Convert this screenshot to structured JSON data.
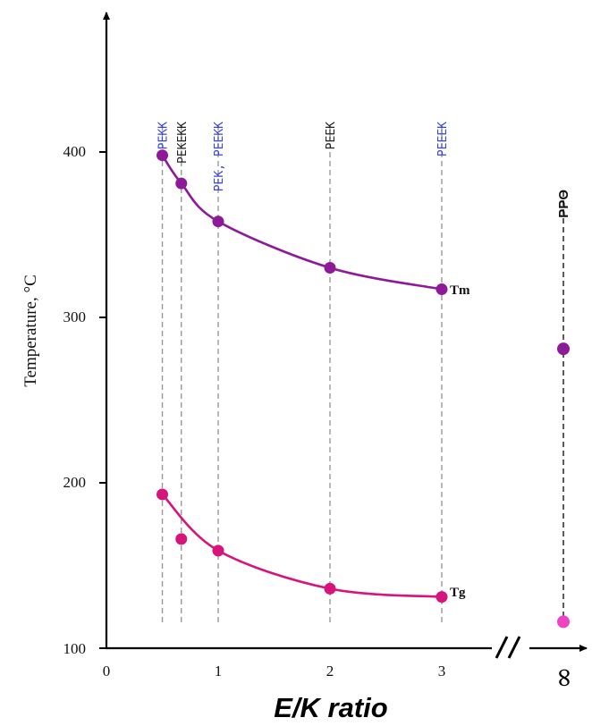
{
  "chart_data": {
    "type": "line",
    "xlabel": "E/K ratio",
    "ylabel": "Temperature, °C",
    "xlim": [
      0,
      3.2
    ],
    "ylim": [
      100,
      480
    ],
    "x_ticks": [
      "0",
      "1",
      "2",
      "3"
    ],
    "y_ticks": [
      "100",
      "200",
      "300",
      "400"
    ],
    "infinity_tick": "∞",
    "series": [
      {
        "name": "Tm",
        "color": "#8e1a99",
        "points": [
          {
            "x": 0.5,
            "y": 398
          },
          {
            "x": 0.67,
            "y": 381
          },
          {
            "x": 1.0,
            "y": 358
          },
          {
            "x": 2.0,
            "y": 330
          },
          {
            "x": 3.0,
            "y": 317
          }
        ],
        "infinity_value": 281
      },
      {
        "name": "Tg",
        "color": "#d6147b",
        "points": [
          {
            "x": 0.5,
            "y": 193
          },
          {
            "x": 0.67,
            "y": 166
          },
          {
            "x": 1.0,
            "y": 159
          },
          {
            "x": 2.0,
            "y": 136
          },
          {
            "x": 3.0,
            "y": 131
          }
        ],
        "infinity_value": 116,
        "infinity_color": "#ee44c4"
      }
    ],
    "polymers": [
      {
        "label": "PEKK",
        "x": 0.5,
        "color": "#3b44e0"
      },
      {
        "label": "PEKEKK",
        "x": 0.67,
        "color": "#222222"
      },
      {
        "label": "PEK, PEEKK",
        "x": 1.0,
        "color": "#3b44e0"
      },
      {
        "label": "PEEK",
        "x": 2.0,
        "color": "#222222"
      },
      {
        "label": "PEEEK",
        "x": 3.0,
        "color": "#3b44e0"
      },
      {
        "label": "PPO",
        "x": "infinity",
        "color": "#111111"
      }
    ],
    "grid": false,
    "legend": "none"
  }
}
